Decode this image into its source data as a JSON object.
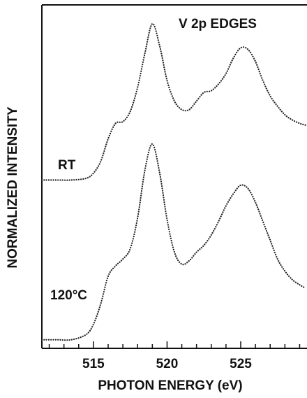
{
  "chart_data": {
    "type": "line",
    "title": "V 2p EDGES",
    "xlabel": "PHOTON ENERGY (eV)",
    "ylabel": "NORMALIZED INTENSITY",
    "xlim": [
      511.5,
      529.5
    ],
    "ylim": [
      0,
      1
    ],
    "x_ticks": [
      515,
      520,
      525
    ],
    "x_tick_labels": [
      "515",
      "520",
      "525"
    ],
    "grid": false,
    "legend": "none",
    "series": [
      {
        "name": "RT",
        "color": "#222222",
        "style": "dotted",
        "x": [
          511.5,
          512.5,
          513.5,
          514.5,
          515.0,
          515.5,
          516.0,
          516.5,
          517.0,
          517.5,
          518.0,
          518.5,
          519.0,
          519.5,
          520.0,
          520.5,
          521.0,
          521.5,
          522.0,
          522.5,
          523.0,
          523.5,
          524.0,
          524.5,
          525.0,
          525.5,
          526.0,
          526.5,
          527.0,
          527.5,
          528.0,
          528.5,
          529.0,
          529.4
        ],
        "y": [
          0.49,
          0.49,
          0.49,
          0.495,
          0.51,
          0.545,
          0.61,
          0.655,
          0.66,
          0.69,
          0.76,
          0.86,
          0.945,
          0.88,
          0.78,
          0.72,
          0.695,
          0.695,
          0.72,
          0.745,
          0.75,
          0.77,
          0.8,
          0.845,
          0.875,
          0.87,
          0.835,
          0.78,
          0.735,
          0.705,
          0.68,
          0.665,
          0.655,
          0.65
        ]
      },
      {
        "name": "120°C",
        "color": "#222222",
        "style": "dotted",
        "x": [
          511.5,
          512.5,
          513.5,
          514.5,
          515.0,
          515.5,
          516.0,
          516.5,
          517.0,
          517.5,
          518.0,
          518.5,
          519.0,
          519.5,
          520.0,
          520.5,
          521.0,
          521.5,
          522.0,
          522.5,
          523.0,
          523.5,
          524.0,
          524.5,
          525.0,
          525.5,
          526.0,
          526.5,
          527.0,
          527.5,
          528.0,
          528.5,
          529.0,
          529.4
        ],
        "y": [
          0.025,
          0.025,
          0.025,
          0.04,
          0.07,
          0.13,
          0.21,
          0.24,
          0.26,
          0.29,
          0.38,
          0.52,
          0.595,
          0.51,
          0.375,
          0.28,
          0.245,
          0.255,
          0.28,
          0.3,
          0.33,
          0.37,
          0.415,
          0.45,
          0.475,
          0.465,
          0.425,
          0.37,
          0.315,
          0.26,
          0.225,
          0.2,
          0.185,
          0.175
        ]
      }
    ],
    "annotations": [
      "RT",
      "120°C"
    ]
  }
}
